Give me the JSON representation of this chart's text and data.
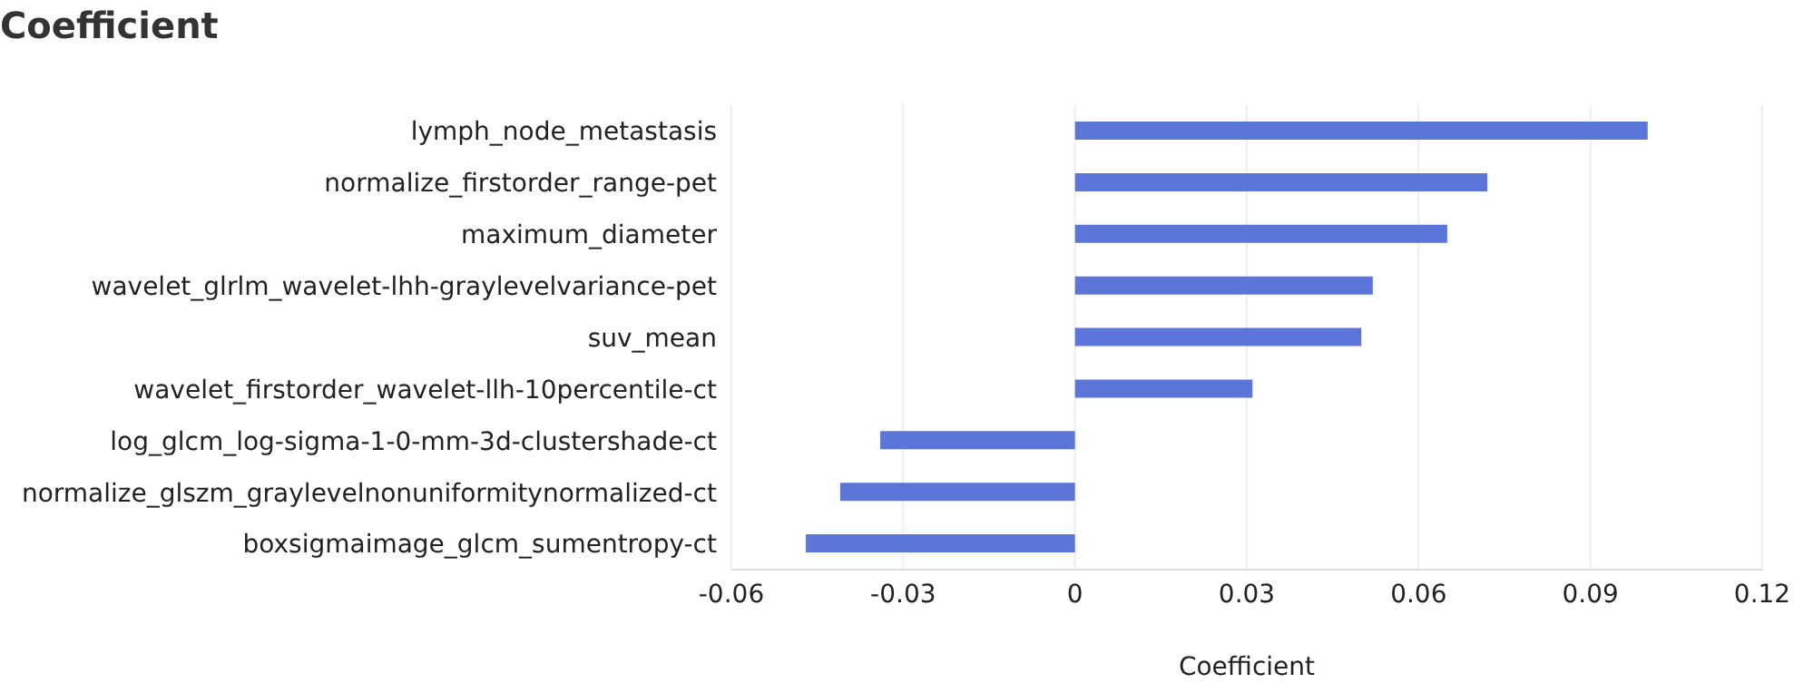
{
  "chart_data": {
    "type": "bar",
    "orientation": "horizontal",
    "title": "Coefficient",
    "xlabel": "Coefficient",
    "categories": [
      "lymph_node_metastasis",
      "normalize_firstorder_range-pet",
      "maximum_diameter",
      "wavelet_glrlm_wavelet-lhh-graylevelvariance-pet",
      "suv_mean",
      "wavelet_firstorder_wavelet-llh-10percentile-ct",
      "log_glcm_log-sigma-1-0-mm-3d-clustershade-ct",
      "normalize_glszm_graylevelnonuniformitynormalized-ct",
      "boxsigmaimage_glcm_sumentropy-ct"
    ],
    "values": [
      0.1,
      0.072,
      0.065,
      0.052,
      0.05,
      0.031,
      -0.034,
      -0.041,
      -0.047
    ],
    "color": "#5b76d8",
    "xlim": [
      -0.06,
      0.12
    ],
    "xticks": [
      -0.06,
      -0.03,
      0,
      0.03,
      0.06,
      0.09,
      0.12
    ],
    "grid": "x"
  }
}
